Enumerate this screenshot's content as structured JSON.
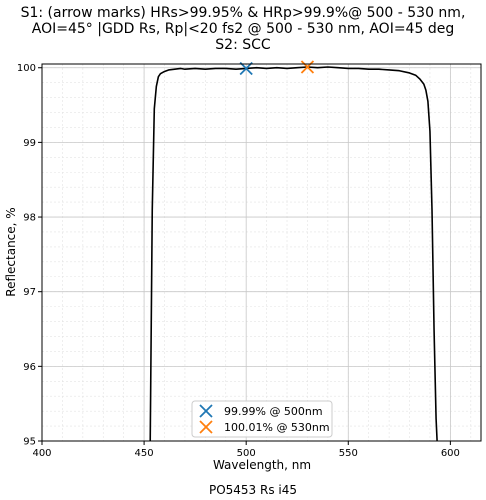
{
  "chart_data": {
    "type": "line",
    "title_lines": [
      "S1: (arrow marks) HRs>99.95% & HRp>99.9%@ 500 - 530 nm,",
      "AOI=45° |GDD Rs, Rp|<20 fs2 @ 500 - 530 nm, AOI=45 deg",
      "S2: SCC"
    ],
    "xlabel": "Wavelength, nm",
    "ylabel": "Reflectance, %",
    "xlim": [
      400,
      615
    ],
    "ylim": [
      95,
      100.05
    ],
    "x_ticks": [
      400,
      450,
      500,
      550,
      600
    ],
    "y_ticks": [
      95,
      96,
      97,
      98,
      99,
      100
    ],
    "grid": true,
    "minor_grid": true,
    "legend_position": "lower-center",
    "series": [
      {
        "color": "#000000",
        "x": [
          453,
          454,
          455,
          456,
          457,
          458,
          460,
          462,
          465,
          468,
          470,
          475,
          480,
          485,
          490,
          495,
          500,
          505,
          510,
          515,
          520,
          525,
          530,
          535,
          540,
          545,
          550,
          555,
          560,
          565,
          570,
          575,
          580,
          583,
          585,
          587,
          588,
          589,
          590,
          591,
          592,
          593,
          593.5
        ],
        "y": [
          95.0,
          98.1,
          99.45,
          99.75,
          99.88,
          99.92,
          99.95,
          99.97,
          99.98,
          99.99,
          99.98,
          99.99,
          99.98,
          99.99,
          99.99,
          99.98,
          99.99,
          100.0,
          99.99,
          100.0,
          99.99,
          100.0,
          100.01,
          100.0,
          100.01,
          100.0,
          99.99,
          99.99,
          99.98,
          99.98,
          99.97,
          99.96,
          99.93,
          99.9,
          99.85,
          99.78,
          99.7,
          99.55,
          99.15,
          98.1,
          96.5,
          95.3,
          95.0
        ]
      }
    ],
    "markers": [
      {
        "label": "99.99% @ 500nm",
        "x": 500,
        "y": 99.99,
        "color": "#1f77b4",
        "symbol": "x"
      },
      {
        "label": "100.01% @ 530nm",
        "x": 530,
        "y": 100.01,
        "color": "#ff7f0e",
        "symbol": "x"
      }
    ]
  },
  "footer": "PO5453 Rs i45"
}
